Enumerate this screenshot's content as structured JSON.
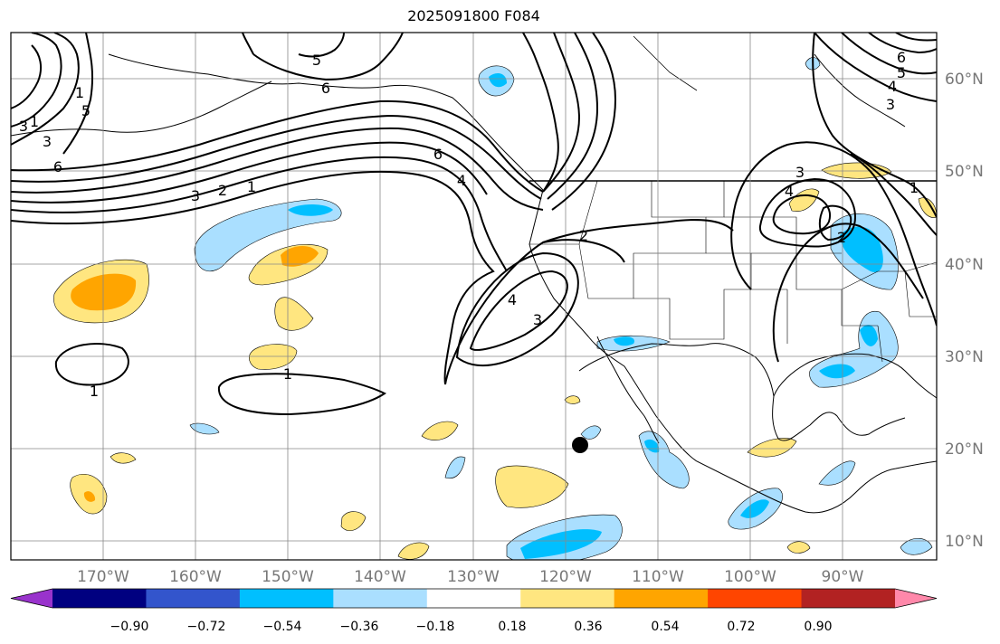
{
  "title": "2025091800 F084",
  "lon_labels": [
    "170°W",
    "160°W",
    "150°W",
    "140°W",
    "130°W",
    "120°W",
    "110°W",
    "100°W",
    "90°W"
  ],
  "lat_labels": [
    "60°N",
    "50°N",
    "40°N",
    "30°N",
    "20°N",
    "10°N"
  ],
  "colorbar": {
    "colors": [
      "#9933cc",
      "#000080",
      "#3355cc",
      "#00bfff",
      "#aadfff",
      "#ffffff",
      "#ffe680",
      "#ffa500",
      "#ff4500",
      "#b22222",
      "#ff88aa"
    ],
    "ticks": [
      "−0.90",
      "−0.72",
      "−0.54",
      "−0.36",
      "−0.18",
      "0.18",
      "0.36",
      "0.54",
      "0.72",
      "0.90"
    ]
  },
  "contour_labels": [
    "5",
    "6",
    "1",
    "3",
    "5",
    "1",
    "3",
    "6",
    "3",
    "2",
    "1",
    "6",
    "4",
    "2",
    "4",
    "3",
    "1",
    "3",
    "4",
    "2",
    "6",
    "4",
    "3",
    "5",
    "1"
  ],
  "marker": "storm-position"
}
